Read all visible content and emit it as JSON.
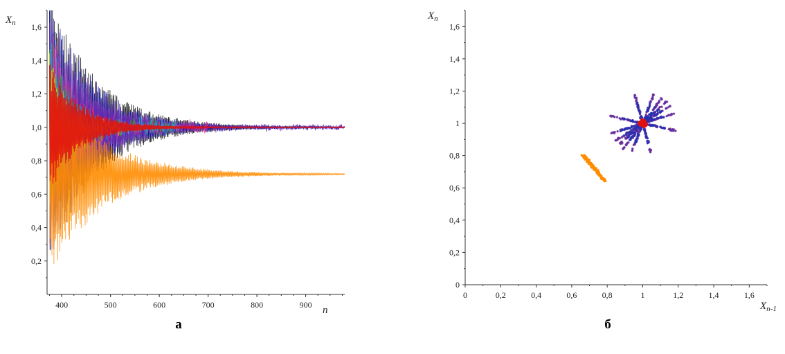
{
  "chart_data": [
    {
      "type": "line",
      "panel_label": "а",
      "xlabel": "n",
      "ylabel": "Xn",
      "xlim": [
        370,
        980
      ],
      "ylim": [
        0,
        1.7
      ],
      "x_ticks": [
        400,
        500,
        600,
        700,
        800,
        900
      ],
      "x_tick_labels": [
        "400",
        "500",
        "600",
        "700",
        "800",
        "900"
      ],
      "y_ticks": [
        0.2,
        0.4,
        0.6,
        0.8,
        1.0,
        1.2,
        1.4,
        1.6
      ],
      "y_tick_labels": [
        "0,2",
        "0,4",
        "0,6",
        "0,8",
        "1,0",
        "1,2",
        "1,4",
        "1,6"
      ],
      "grid": false,
      "legend": "none",
      "series": [
        {
          "color": "#000000",
          "x_start": 375,
          "x_end": 980,
          "limit": 1.0,
          "amp0": 0.82,
          "decay": 0.0105,
          "noise": 0.0
        },
        {
          "color": "#1a1aa8",
          "x_start": 375,
          "x_end": 980,
          "limit": 1.0,
          "amp0": 0.8,
          "decay": 0.0115,
          "noise": 0.02
        },
        {
          "color": "#7b2fbe",
          "x_start": 375,
          "x_end": 980,
          "limit": 1.0,
          "amp0": 0.72,
          "decay": 0.012,
          "noise": 0.03
        },
        {
          "color": "#d12fa0",
          "x_start": 375,
          "x_end": 700,
          "limit": 1.0,
          "amp0": 0.7,
          "decay": 0.02,
          "noise": 0.06
        },
        {
          "color": "#2aa12a",
          "x_start": 375,
          "x_end": 640,
          "limit": 1.0,
          "amp0": 0.6,
          "decay": 0.025,
          "noise": 0.08
        },
        {
          "color": "#29a3c8",
          "x_start": 375,
          "x_end": 640,
          "limit": 1.0,
          "amp0": 0.58,
          "decay": 0.025,
          "noise": 0.08
        },
        {
          "color": "#e0d000",
          "x_start": 375,
          "x_end": 520,
          "limit": 1.0,
          "amp0": 0.5,
          "decay": 0.03,
          "noise": 0.1
        },
        {
          "color": "#ff8c00",
          "x_start": 375,
          "x_end": 980,
          "limit": 0.72,
          "amp0": 0.62,
          "decay": 0.0095,
          "noise": 0.0
        },
        {
          "color": "#e01010",
          "x_start": 375,
          "x_end": 980,
          "limit": 1.0,
          "amp0": 0.4,
          "decay": 0.016,
          "noise": 0.0
        }
      ]
    },
    {
      "type": "scatter",
      "panel_label": "б",
      "xlabel": "Xn-1",
      "ylabel": "Xn",
      "xlim": [
        0,
        1.7
      ],
      "ylim": [
        0,
        1.7
      ],
      "x_ticks": [
        0,
        0.2,
        0.4,
        0.6,
        0.8,
        1,
        1.2,
        1.4,
        1.6
      ],
      "x_tick_labels": [
        "0",
        "0,2",
        "0,4",
        "0,6",
        "0,8",
        "1",
        "1,2",
        "1,4",
        "1,6"
      ],
      "y_ticks": [
        0,
        0.2,
        0.4,
        0.6,
        0.8,
        1,
        1.2,
        1.4,
        1.6
      ],
      "y_tick_labels": [
        "0",
        "0,2",
        "0,4",
        "0,6",
        "0,8",
        "1",
        "1,2",
        "1,4",
        "1,6"
      ],
      "grid": false,
      "legend": "none",
      "marker": "*",
      "series": [
        {
          "color": "#6a2f9e",
          "center": [
            1.0,
            1.0
          ],
          "direction": "arms",
          "arm_length": 0.19,
          "count": 420
        },
        {
          "color": "#2a2fb0",
          "center": [
            1.0,
            1.0
          ],
          "direction": "arms",
          "arm_length": 0.13,
          "count": 260
        },
        {
          "color": "#ff8c00",
          "center": [
            0.725,
            0.725
          ],
          "direction": "anti-diagonal",
          "arm_length": 0.1,
          "count": 160
        },
        {
          "color": "#e01010",
          "center": [
            1.0,
            1.0
          ],
          "direction": "blob",
          "arm_length": 0.03,
          "count": 90
        }
      ]
    }
  ]
}
